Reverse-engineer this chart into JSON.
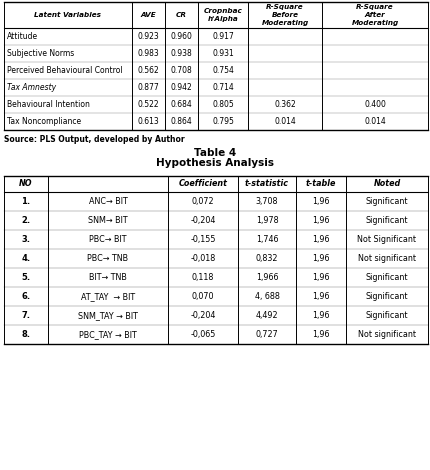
{
  "title1": "Table 4",
  "title2": "Hypothesis Analysis",
  "source_text": "Source: PLS Output, developed by Author",
  "top_table": {
    "headers": [
      "Latent Variables",
      "AVE",
      "CR",
      "Cropnbac\nh'Alpha",
      "R-Square\nBefore\nModerating",
      "R-Square\nAfter\nModerating"
    ],
    "italic_header": [
      true,
      false,
      false,
      false,
      false,
      false
    ],
    "rows": [
      [
        "Attitude",
        "0.923",
        "0.960",
        "0.917",
        "",
        ""
      ],
      [
        "Subjective Norms",
        "0.983",
        "0.938",
        "0.931",
        "",
        ""
      ],
      [
        "Perceived Behavioural Control",
        "0.562",
        "0.708",
        "0.754",
        "",
        ""
      ],
      [
        "Tax Amnesty",
        "0.877",
        "0.942",
        "0.714",
        "",
        ""
      ],
      [
        "Behavioural Intention",
        "0.522",
        "0.684",
        "0.805",
        "0.362",
        "0.400"
      ],
      [
        "Tax Noncompliance",
        "0.613",
        "0.864",
        "0.795",
        "0.014",
        "0.014"
      ]
    ],
    "italic_rows": [
      false,
      false,
      false,
      true,
      false,
      false
    ]
  },
  "bottom_table": {
    "headers": [
      "NO",
      "",
      "Coefficient",
      "t-statistic",
      "t-table",
      "Noted"
    ],
    "rows": [
      [
        "1.",
        "ANC→ BIT",
        "0,072",
        "3,708",
        "1,96",
        "Significant"
      ],
      [
        "2.",
        "SNM→ BIT",
        "-0,204",
        "1,978",
        "1,96",
        "Significant"
      ],
      [
        "3.",
        "PBC→ BIT",
        "-0,155",
        "1,746",
        "1,96",
        "Not Significant"
      ],
      [
        "4.",
        "PBC→ TNB",
        "-0,018",
        "0,832",
        "1,96",
        "Not significant"
      ],
      [
        "5.",
        "BIT→ TNB",
        "0,118",
        "1,966",
        "1,96",
        "Significant"
      ],
      [
        "6.",
        "AT_TAY  → BIT",
        "0,070",
        "4, 688",
        "1,96",
        "Significant"
      ],
      [
        "7.",
        "SNM_TAY → BIT",
        "-0,204",
        "4,492",
        "1,96",
        "Significant"
      ],
      [
        "8.",
        "PBC_TAY → BIT",
        "-0,065",
        "0,727",
        "1,96",
        "Not significant"
      ]
    ]
  },
  "bg_color": "#ffffff",
  "line_color": "#000000",
  "text_color": "#000000",
  "fig_width": 4.31,
  "fig_height": 4.7,
  "dpi": 100
}
